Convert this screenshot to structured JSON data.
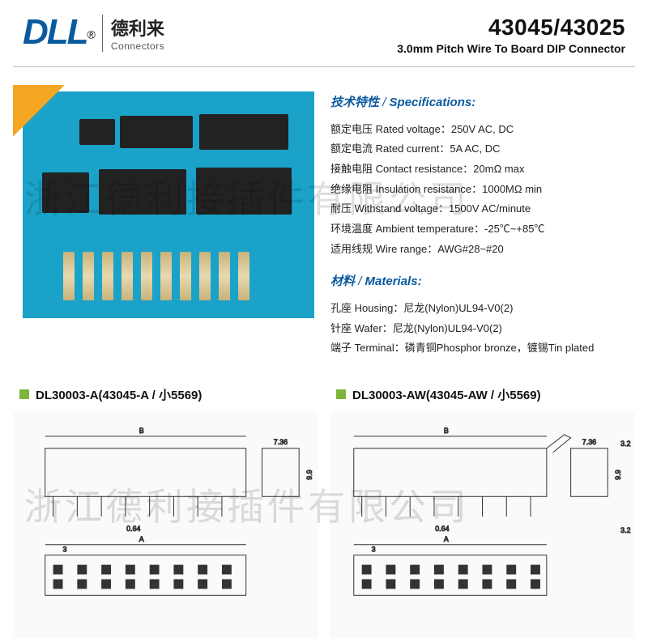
{
  "header": {
    "logo": "DLL",
    "logo_cn": "德利来",
    "logo_en": "Connectors",
    "part_number": "43045/43025",
    "subtitle": "3.0mm Pitch Wire To Board DIP Connector"
  },
  "specs": {
    "title_cn": "技术特性",
    "title_en": "Specifications:",
    "rows": [
      "额定电压 Rated voltage：250V AC, DC",
      "额定电流 Rated current：5A AC, DC",
      "接触电阻 Contact resistance：20mΩ max",
      "绝缘电阻 Insulation resistance：1000MΩ min",
      "耐压 Withstand voltage：1500V AC/minute",
      "环境温度 Ambient temperature：-25℃~+85℃",
      "适用线规 Wire range：AWG#28~#20"
    ]
  },
  "materials": {
    "title_cn": "材料",
    "title_en": "Materials:",
    "rows": [
      "孔座 Housing：尼龙(Nylon)UL94-V0(2)",
      "针座 Wafer：尼龙(Nylon)UL94-V0(2)",
      "端子 Terminal：磷青铜Phosphor bronze，镀锡Tin plated"
    ]
  },
  "drawings": [
    {
      "title": "DL30003-A(43045-A / 小5569)",
      "dimB": "B",
      "dimA": "A",
      "w": "7.36",
      "h": "9.9",
      "p": "0.64",
      "pitch": "3"
    },
    {
      "title": "DL30003-AW(43045-AW / 小5569)",
      "dimB": "B",
      "dimA": "A",
      "w": "7.36",
      "h": "9.9",
      "p": "0.64",
      "pitch": "3",
      "ext": "3.2"
    }
  ],
  "watermark": "浙江德利接插件有限公司",
  "colors": {
    "brand_blue": "#0a5aa0",
    "photo_bg": "#1aa2c9",
    "bullet_green": "#7db53b"
  }
}
